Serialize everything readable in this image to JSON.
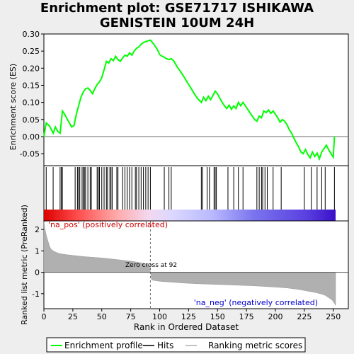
{
  "title_lines": [
    "Enrichment plot: GSE71717 ISHIKAWA",
    "GENISTEIN 10UM 24H"
  ],
  "chart_data": {
    "type": "line",
    "title": "Enrichment plot: GSE71717 ISHIKAWA GENISTEIN 10UM 24H",
    "xlabel": "Rank in Ordered Dataset",
    "xlim": [
      0,
      263
    ],
    "xticks": [
      "0",
      "25",
      "50",
      "75",
      "100",
      "125",
      "150",
      "175",
      "200",
      "225",
      "250"
    ],
    "panels": [
      {
        "name": "enrichment",
        "ylabel": "Enrichment score (ES)",
        "ylim": [
          -0.085,
          0.3
        ],
        "yticks": [
          "0.30",
          "0.25",
          "0.20",
          "0.15",
          "0.10",
          "0.05",
          "0.00",
          "-0.05"
        ],
        "series": [
          {
            "name": "Enrichment profile",
            "color": "#00ff00",
            "x": [
              0,
              2,
              5,
              8,
              10,
              12,
              14,
              16,
              18,
              20,
              22,
              24,
              26,
              28,
              30,
              32,
              34,
              36,
              38,
              40,
              42,
              44,
              46,
              48,
              50,
              52,
              54,
              56,
              58,
              60,
              62,
              64,
              66,
              68,
              70,
              72,
              74,
              76,
              78,
              80,
              82,
              84,
              86,
              88,
              90,
              92,
              95,
              98,
              100,
              102,
              104,
              106,
              108,
              110,
              112,
              115,
              118,
              121,
              124,
              127,
              130,
              133,
              136,
              138,
              140,
              142,
              144,
              146,
              148,
              150,
              152,
              154,
              156,
              158,
              160,
              162,
              164,
              166,
              168,
              170,
              172,
              174,
              176,
              178,
              180,
              182,
              184,
              186,
              188,
              190,
              192,
              194,
              196,
              198,
              200,
              202,
              204,
              206,
              208,
              210,
              212,
              214,
              216,
              218,
              220,
              222,
              224,
              226,
              228,
              230,
              232,
              234,
              236,
              238,
              240,
              242,
              244,
              246,
              248,
              250,
              251
            ],
            "y": [
              0.0,
              0.04,
              0.03,
              0.01,
              0.028,
              0.015,
              0.01,
              0.075,
              0.065,
              0.052,
              0.04,
              0.028,
              0.032,
              0.065,
              0.09,
              0.115,
              0.13,
              0.14,
              0.142,
              0.135,
              0.125,
              0.14,
              0.152,
              0.16,
              0.172,
              0.195,
              0.22,
              0.215,
              0.228,
              0.222,
              0.235,
              0.225,
              0.22,
              0.23,
              0.238,
              0.235,
              0.245,
              0.238,
              0.25,
              0.258,
              0.262,
              0.27,
              0.275,
              0.278,
              0.28,
              0.282,
              0.27,
              0.255,
              0.24,
              0.235,
              0.232,
              0.228,
              0.225,
              0.228,
              0.222,
              0.205,
              0.19,
              0.175,
              0.158,
              0.142,
              0.125,
              0.11,
              0.1,
              0.115,
              0.105,
              0.118,
              0.108,
              0.12,
              0.133,
              0.125,
              0.112,
              0.1,
              0.09,
              0.082,
              0.092,
              0.08,
              0.09,
              0.082,
              0.1,
              0.09,
              0.1,
              0.09,
              0.08,
              0.07,
              0.06,
              0.05,
              0.045,
              0.06,
              0.055,
              0.075,
              0.07,
              0.078,
              0.068,
              0.075,
              0.065,
              0.055,
              0.042,
              0.05,
              0.045,
              0.035,
              0.02,
              0.01,
              -0.005,
              -0.018,
              -0.03,
              -0.045,
              -0.05,
              -0.038,
              -0.052,
              -0.062,
              -0.045,
              -0.058,
              -0.048,
              -0.065,
              -0.045,
              -0.035,
              -0.025,
              -0.038,
              -0.05,
              -0.06,
              0.0
            ]
          }
        ]
      },
      {
        "name": "hits",
        "legend": "Hits",
        "color": "#000000",
        "positions": [
          2,
          8,
          14,
          15,
          16,
          27,
          29,
          30,
          31,
          33,
          34,
          35,
          36,
          38,
          40,
          41,
          46,
          47,
          48,
          50,
          52,
          54,
          55,
          57,
          58,
          59,
          63,
          64,
          68,
          70,
          72,
          74,
          76,
          79,
          80,
          82,
          84,
          86,
          88,
          90,
          92,
          104,
          108,
          110,
          136,
          137,
          141,
          143,
          147,
          148,
          149,
          159,
          164,
          168,
          172,
          184,
          186,
          188,
          189,
          191,
          193,
          198,
          205,
          225,
          231,
          236,
          240,
          243,
          251
        ]
      },
      {
        "name": "ranked_list_metric",
        "ylabel": "Ranked list metric (PreRanked)",
        "ylim": [
          -1.7,
          2.4
        ],
        "yticks": [
          "2",
          "1",
          "0",
          "-1"
        ],
        "legend": "Ranking metric scores",
        "color": "#b0b0b0",
        "x": [
          0,
          1,
          2,
          3,
          4,
          5,
          6,
          7,
          8,
          10,
          12,
          14,
          16,
          20,
          25,
          30,
          35,
          40,
          45,
          50,
          55,
          60,
          65,
          70,
          75,
          80,
          85,
          90,
          91,
          92,
          93,
          95,
          100,
          110,
          120,
          130,
          140,
          150,
          160,
          170,
          180,
          190,
          200,
          210,
          220,
          225,
          230,
          235,
          240,
          243,
          245,
          247,
          249,
          251,
          252
        ],
        "values": [
          2.35,
          2.0,
          1.75,
          1.55,
          1.38,
          1.2,
          1.1,
          1.05,
          1.0,
          0.95,
          0.9,
          0.87,
          0.85,
          0.82,
          0.79,
          0.76,
          0.73,
          0.71,
          0.69,
          0.67,
          0.64,
          0.61,
          0.58,
          0.55,
          0.52,
          0.48,
          0.43,
          0.36,
          0.3,
          0.05,
          -0.35,
          -0.38,
          -0.42,
          -0.46,
          -0.5,
          -0.53,
          -0.55,
          -0.57,
          -0.59,
          -0.61,
          -0.63,
          -0.66,
          -0.69,
          -0.73,
          -0.8,
          -0.85,
          -0.9,
          -0.95,
          -1.02,
          -1.08,
          -1.15,
          -1.22,
          -1.3,
          -1.45,
          -1.55
        ]
      }
    ],
    "annotations": {
      "pos_label": "'na_pos' (positively correlated)",
      "neg_label": "'na_neg' (negatively correlated)",
      "zero_cross_label": "Zero cross at 92",
      "zero_cross_at": 92
    },
    "legend": {
      "placement": "bottom",
      "entries": [
        "Enrichment profile",
        "Hits",
        "Ranking metric scores"
      ]
    },
    "colors": {
      "profile": "#00ff00",
      "pos_label": "#cc0000",
      "neg_label": "#0000cc",
      "metric_fill": "#b0b0b0"
    }
  }
}
